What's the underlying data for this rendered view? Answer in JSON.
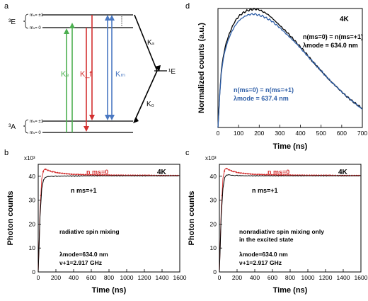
{
  "panel_a": {
    "letter": "a",
    "level_3E": "³E",
    "level_3A": "³A",
    "level_1E": "¹E",
    "sub_pm1": "mₛ= ±1",
    "sub_0": "mₛ= 0",
    "k_e": "Kₑ",
    "k_f": "K_f",
    "k_m": "Kₘ",
    "k_s": "Kₛ",
    "k_0": "K₀",
    "colors": {
      "k_e": "#4caf50",
      "k_f": "#d32f2f",
      "k_m": "#4a78c2",
      "levels": "#000000"
    }
  },
  "chart_data": [
    {
      "panel": "d",
      "type": "line",
      "xlabel": "Time (ns)",
      "ylabel": "Normalized counts (a.u.)",
      "xlim": [
        0,
        700
      ],
      "ylim": [
        0,
        1.05
      ],
      "xticks": [
        "0",
        "100",
        "200",
        "300",
        "400",
        "500",
        "600",
        "700"
      ],
      "temperature": "4K",
      "series": [
        {
          "name_lines": [
            "n(ms=0) = n(ms=+1)",
            "λmode = 634.0 nm"
          ],
          "color": "#000000",
          "x": [
            0,
            8,
            16,
            25,
            40,
            60,
            80,
            100,
            120,
            140,
            160,
            180,
            200,
            220,
            240,
            260,
            300,
            340,
            380,
            420,
            460,
            500,
            540,
            580,
            620,
            660,
            700
          ],
          "y": [
            0.0,
            0.28,
            0.5,
            0.62,
            0.75,
            0.85,
            0.93,
            0.98,
            1.01,
            1.03,
            1.04,
            1.045,
            1.04,
            1.02,
            1.0,
            0.97,
            0.9,
            0.83,
            0.75,
            0.67,
            0.58,
            0.5,
            0.42,
            0.35,
            0.28,
            0.22,
            0.17
          ]
        },
        {
          "name_lines": [
            "n(ms=0) = n(ms=+1)",
            "λmode = 637.4 nm"
          ],
          "color": "#2f5fa8",
          "x": [
            0,
            8,
            16,
            25,
            40,
            60,
            80,
            100,
            120,
            140,
            160,
            180,
            200,
            220,
            240,
            260,
            300,
            340,
            380,
            420,
            460,
            500,
            540,
            580,
            620,
            660,
            700
          ],
          "y": [
            0.0,
            0.27,
            0.48,
            0.6,
            0.72,
            0.82,
            0.89,
            0.94,
            0.97,
            0.99,
            1.0,
            1.0,
            0.99,
            0.98,
            0.96,
            0.94,
            0.88,
            0.81,
            0.74,
            0.66,
            0.58,
            0.5,
            0.42,
            0.35,
            0.28,
            0.22,
            0.16
          ]
        }
      ]
    },
    {
      "panel": "b",
      "type": "line",
      "xlabel": "Time (ns)",
      "ylabel": "Photon counts",
      "exponent": "x10³",
      "xlim": [
        0,
        1600
      ],
      "ylim": [
        0,
        45
      ],
      "xticks": [
        "0",
        "200",
        "400",
        "600",
        "800",
        "1000",
        "1200",
        "1400",
        "1600"
      ],
      "yticks": [
        "0",
        "10",
        "20",
        "30",
        "40"
      ],
      "temperature": "4K",
      "annotation_title": "radiative spin mixing",
      "params": [
        "λmode=634.0 nm",
        "ν+1=2.917 GHz"
      ],
      "series": [
        {
          "name": "n ms=0",
          "color": "#d32f2f",
          "x": [
            0,
            20,
            40,
            60,
            80,
            100,
            150,
            200,
            300,
            400,
            600,
            800,
            1000,
            1200,
            1400,
            1600
          ],
          "y": [
            0,
            25,
            39,
            42.5,
            43,
            42.6,
            42.0,
            41.6,
            41.1,
            40.8,
            40.6,
            40.5,
            40.4,
            40.4,
            40.3,
            40.3
          ]
        },
        {
          "name": "n ms=+1",
          "color": "#000000",
          "x": [
            0,
            20,
            40,
            60,
            80,
            100,
            150,
            200,
            300,
            400,
            600,
            800,
            1000,
            1200,
            1400,
            1600
          ],
          "y": [
            0,
            23,
            35,
            38.5,
            39.5,
            39.8,
            40.0,
            40.0,
            40.1,
            40.1,
            40.2,
            40.2,
            40.2,
            40.2,
            40.2,
            40.2
          ]
        }
      ]
    },
    {
      "panel": "c",
      "type": "line",
      "xlabel": "Time (ns)",
      "ylabel": "Photon counts",
      "exponent": "x10³",
      "xlim": [
        0,
        1600
      ],
      "ylim": [
        0,
        45
      ],
      "xticks": [
        "0",
        "200",
        "400",
        "600",
        "800",
        "1000",
        "1200",
        "1400",
        "1600"
      ],
      "yticks": [
        "0",
        "10",
        "20",
        "30",
        "40"
      ],
      "temperature": "4K",
      "annotation_title": "nonradiative spin mixing only",
      "annotation_title2": "in the excited state",
      "params": [
        "λmode=634.0 nm",
        "ν+1=2.917 GHz"
      ],
      "series": [
        {
          "name": "n ms=0",
          "color": "#d32f2f",
          "x": [
            0,
            20,
            40,
            60,
            80,
            100,
            150,
            200,
            300,
            400,
            600,
            800,
            1000,
            1200,
            1400,
            1600
          ],
          "y": [
            0,
            25,
            39,
            42.8,
            43.3,
            42.8,
            42.1,
            41.6,
            41.1,
            40.8,
            40.6,
            40.5,
            40.4,
            40.4,
            40.3,
            40.3
          ]
        },
        {
          "name": "n ms=+1",
          "color": "#000000",
          "x": [
            0,
            20,
            40,
            60,
            80,
            100,
            150,
            200,
            300,
            400,
            600,
            800,
            1000,
            1200,
            1400,
            1600
          ],
          "y": [
            0,
            23,
            35,
            39.5,
            40.5,
            40.6,
            40.4,
            40.3,
            40.2,
            40.2,
            40.2,
            40.2,
            40.2,
            40.2,
            40.2,
            40.2
          ]
        }
      ]
    }
  ],
  "panel_letters": {
    "b": "b",
    "c": "c",
    "d": "d"
  }
}
